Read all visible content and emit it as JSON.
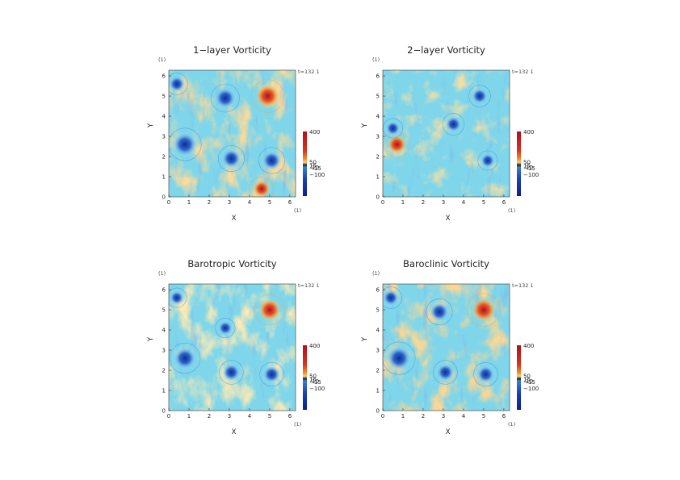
{
  "chart_data": [
    {
      "type": "heatmap",
      "title": "1−layer Vorticity",
      "xlabel": "X",
      "ylabel": "Y",
      "x_unit_label": "(1)",
      "y_unit_label": "(1)",
      "time_label": "t=132 1",
      "xlim": [
        0,
        6.2832
      ],
      "ylim": [
        0,
        6.2832
      ],
      "x_ticks": [
        "0",
        "1",
        "2",
        "3",
        "4",
        "5",
        "6"
      ],
      "y_ticks": [
        "0",
        "1",
        "2",
        "3",
        "4",
        "5",
        "6"
      ],
      "colorbar_labels": [
        "400",
        "50",
        "15",
        "10",
        "−15",
        "−100"
      ],
      "vortices": [
        {
          "x": 0.8,
          "y": 2.6,
          "sign": "negative",
          "strength": 1.0
        },
        {
          "x": 4.9,
          "y": 5.0,
          "sign": "positive",
          "strength": 1.0
        },
        {
          "x": 2.8,
          "y": 4.9,
          "sign": "negative",
          "strength": 0.8
        },
        {
          "x": 3.1,
          "y": 1.9,
          "sign": "negative",
          "strength": 0.7
        },
        {
          "x": 5.1,
          "y": 1.8,
          "sign": "negative",
          "strength": 0.7
        },
        {
          "x": 0.4,
          "y": 5.6,
          "sign": "negative",
          "strength": 0.5
        },
        {
          "x": 4.6,
          "y": 0.4,
          "sign": "positive",
          "strength": 0.6
        }
      ]
    },
    {
      "type": "heatmap",
      "title": "2−layer Vorticity",
      "xlabel": "X",
      "ylabel": "Y",
      "x_unit_label": "(1)",
      "y_unit_label": "(1)",
      "time_label": "t=132 1",
      "xlim": [
        0,
        6.2832
      ],
      "ylim": [
        0,
        6.2832
      ],
      "x_ticks": [
        "0",
        "1",
        "2",
        "3",
        "4",
        "5",
        "6"
      ],
      "y_ticks": [
        "0",
        "1",
        "2",
        "3",
        "4",
        "5",
        "6"
      ],
      "colorbar_labels": [
        "400",
        "50",
        "15",
        "10",
        "−15",
        "−100"
      ],
      "vortices": [
        {
          "x": 0.7,
          "y": 2.6,
          "sign": "positive",
          "strength": 0.7
        },
        {
          "x": 4.8,
          "y": 5.0,
          "sign": "negative",
          "strength": 0.5
        },
        {
          "x": 0.5,
          "y": 3.4,
          "sign": "negative",
          "strength": 0.4
        },
        {
          "x": 5.2,
          "y": 1.8,
          "sign": "negative",
          "strength": 0.4
        },
        {
          "x": 3.5,
          "y": 3.6,
          "sign": "negative",
          "strength": 0.5
        }
      ]
    },
    {
      "type": "heatmap",
      "title": "Barotropic Vorticity",
      "xlabel": "X",
      "ylabel": "Y",
      "x_unit_label": "(1)",
      "y_unit_label": "(1)",
      "time_label": "t=132 1",
      "xlim": [
        0,
        6.2832
      ],
      "ylim": [
        0,
        6.2832
      ],
      "x_ticks": [
        "0",
        "1",
        "2",
        "3",
        "4",
        "5",
        "6"
      ],
      "y_ticks": [
        "0",
        "1",
        "2",
        "3",
        "4",
        "5",
        "6"
      ],
      "colorbar_labels": [
        "400",
        "50",
        "15",
        "10",
        "−15",
        "−100"
      ],
      "vortices": [
        {
          "x": 0.8,
          "y": 2.6,
          "sign": "negative",
          "strength": 0.9
        },
        {
          "x": 5.0,
          "y": 5.0,
          "sign": "positive",
          "strength": 0.9
        },
        {
          "x": 3.1,
          "y": 1.9,
          "sign": "negative",
          "strength": 0.6
        },
        {
          "x": 5.1,
          "y": 1.8,
          "sign": "negative",
          "strength": 0.6
        },
        {
          "x": 0.4,
          "y": 5.6,
          "sign": "negative",
          "strength": 0.4
        },
        {
          "x": 2.8,
          "y": 4.1,
          "sign": "negative",
          "strength": 0.4
        }
      ]
    },
    {
      "type": "heatmap",
      "title": "Baroclinic Vorticity",
      "xlabel": "X",
      "ylabel": "Y",
      "x_unit_label": "(1)",
      "y_unit_label": "(1)",
      "time_label": "t=132 1",
      "xlim": [
        0,
        6.2832
      ],
      "ylim": [
        0,
        6.2832
      ],
      "x_ticks": [
        "0",
        "1",
        "2",
        "3",
        "4",
        "5",
        "6"
      ],
      "y_ticks": [
        "0",
        "1",
        "2",
        "3",
        "4",
        "5",
        "6"
      ],
      "colorbar_labels": [
        "400",
        "50",
        "15",
        "10",
        "−15",
        "−100"
      ],
      "vortices": [
        {
          "x": 0.8,
          "y": 2.6,
          "sign": "negative",
          "strength": 1.0
        },
        {
          "x": 5.0,
          "y": 5.0,
          "sign": "positive",
          "strength": 1.0
        },
        {
          "x": 2.8,
          "y": 4.9,
          "sign": "negative",
          "strength": 0.7
        },
        {
          "x": 3.1,
          "y": 1.9,
          "sign": "negative",
          "strength": 0.6
        },
        {
          "x": 5.1,
          "y": 1.8,
          "sign": "negative",
          "strength": 0.6
        },
        {
          "x": 0.4,
          "y": 5.6,
          "sign": "negative",
          "strength": 0.5
        }
      ]
    }
  ],
  "colors": {
    "positive_strong": "#c0141a",
    "positive": "#f08a2a",
    "weak_positive": "#f2d47a",
    "background": "#7fd6ea",
    "negative": "#2f7fd0",
    "negative_strong": "#0b2d9c"
  }
}
